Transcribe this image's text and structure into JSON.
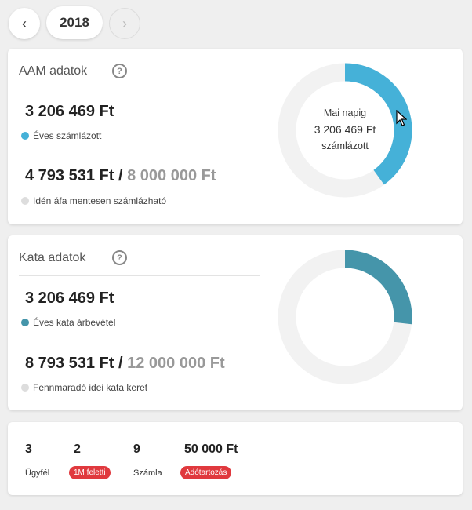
{
  "year_nav": {
    "prev_icon": "‹",
    "year": "2018",
    "next_icon": "›"
  },
  "aam": {
    "title": "AAM adatok",
    "help_icon": "?",
    "invoiced_amount": "3 206 469 Ft",
    "invoiced_label": "Éves számlázott",
    "remaining_amount": "4 793 531 Ft",
    "separator": " / ",
    "limit_amount": "8 000 000 Ft",
    "remaining_label": "Idén áfa mentesen számlázható",
    "progress": 0.4008,
    "center_line1": "Mai napig",
    "center_line2": "3 206 469 Ft",
    "center_line3": "számlázott",
    "color": "#45b1d8"
  },
  "kata": {
    "title": "Kata adatok",
    "help_icon": "?",
    "revenue_amount": "3 206 469 Ft",
    "revenue_label": "Éves kata árbevétel",
    "remaining_amount": "8 793 531 Ft",
    "separator": " / ",
    "limit_amount": "12 000 000 Ft",
    "remaining_label": "Fennmaradó idei kata keret",
    "progress": 0.2672,
    "color": "#4595aa"
  },
  "track_color": "#f2f2f2",
  "legend_grey": "#dddddd",
  "stats": {
    "clients_value": "3",
    "clients_label": "Ügyfél",
    "over_1m_value": "2",
    "over_1m_badge": "1M feletti",
    "invoices_value": "9",
    "invoices_label": "Számla",
    "tax_debt_value": "50 000 Ft",
    "tax_debt_badge": "Adótartozás"
  }
}
